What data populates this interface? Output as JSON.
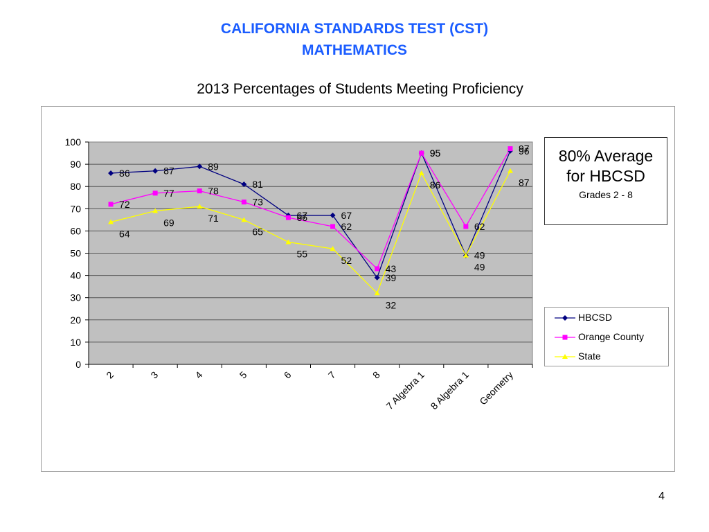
{
  "header": {
    "title_line1": "CALIFORNIA STANDARDS TEST (CST)",
    "title_line2": "MATHEMATICS",
    "subtitle": "2013 Percentages of Students Meeting Proficiency"
  },
  "note": {
    "line1": "80% Average",
    "line2": "for HBCSD",
    "line3": "Grades 2 - 8"
  },
  "page_number": "4",
  "colors": {
    "plot_background": "#c0c0c0",
    "hbcsd": "#000080",
    "orange_county": "#ff00ff",
    "state": "#ffff00",
    "title": "#1a5cff"
  },
  "chart_data": {
    "type": "line",
    "categories": [
      "2",
      "3",
      "4",
      "5",
      "6",
      "7",
      "8",
      "7 Algebra 1",
      "8 Algebra 1",
      "Geometry"
    ],
    "ylim": [
      0,
      100
    ],
    "yticks": [
      0,
      10,
      20,
      30,
      40,
      50,
      60,
      70,
      80,
      90,
      100
    ],
    "grid": true,
    "legend_position": "right",
    "series": [
      {
        "name": "HBCSD",
        "values": [
          86,
          87,
          89,
          81,
          67,
          67,
          39,
          95,
          49,
          96
        ],
        "color": "#000080",
        "marker": "diamond"
      },
      {
        "name": "Orange County",
        "values": [
          72,
          77,
          78,
          73,
          66,
          62,
          43,
          95,
          62,
          97
        ],
        "color": "#ff00ff",
        "marker": "square"
      },
      {
        "name": "State",
        "values": [
          64,
          69,
          71,
          65,
          55,
          52,
          32,
          86,
          49,
          87
        ],
        "color": "#ffff00",
        "marker": "triangle"
      }
    ]
  }
}
